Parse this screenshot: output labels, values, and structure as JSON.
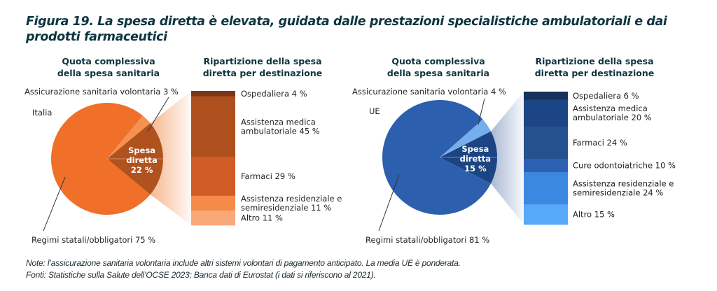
{
  "figure": {
    "title": "Figura 19. La spesa diretta è elevata, guidata dalle prestazioni specialistiche ambulatoriali e dai prodotti farmaceutici",
    "note": "Note: l’assicurazione sanitaria volontaria include altri sistemi volontari di pagamento anticipato. La media UE è ponderata.",
    "sources": "Fonti: Statistiche sulla Salute dell’OCSE 2023; Banca dati di Eurostat (i dati si riferiscono al 2021)."
  },
  "chart_data": [
    {
      "type": "pie",
      "region": "Italia",
      "title_lines": [
        "Quota complessiva",
        "della spesa sanitaria"
      ],
      "slices": [
        {
          "label": "Regimi statali/obbligatori 75 %",
          "value": 75,
          "color": "#f0702a"
        },
        {
          "label": "Assicurazione sanitaria volontaria 3 %",
          "value": 3,
          "color": "#f7914f"
        },
        {
          "label_lines": [
            "Spesa",
            "diretta",
            "22 %"
          ],
          "value": 22,
          "color": "#b0521e",
          "highlight": true
        }
      ]
    },
    {
      "type": "bar",
      "stacked": true,
      "region": "Italia",
      "title_lines": [
        "Ripartizione della spesa",
        "diretta per destinazione"
      ],
      "segments": [
        {
          "label_lines": [
            "Ospedaliera 4 %"
          ],
          "value": 4,
          "color": "#7b3516"
        },
        {
          "label_lines": [
            "Assistenza medica",
            "ambulatoriale 45 %"
          ],
          "value": 45,
          "color": "#ad501e"
        },
        {
          "label_lines": [
            "Farmaci 29 %"
          ],
          "value": 29,
          "color": "#d15b24"
        },
        {
          "label_lines": [
            "Assistenza residenziale e",
            "semiresidenziale 11 %"
          ],
          "value": 11,
          "color": "#f68a48"
        },
        {
          "label_lines": [
            "Altro 11 %"
          ],
          "value": 11,
          "color": "#f9a878"
        }
      ],
      "fan_color": "#f6b48a"
    },
    {
      "type": "pie",
      "region": "UE",
      "title_lines": [
        "Quota complessiva",
        "della spesa sanitaria"
      ],
      "slices": [
        {
          "label": "Regimi statali/obbligatori 81 %",
          "value": 81,
          "color": "#2c5fae"
        },
        {
          "label": "Assicurazione sanitaria volontaria 4 %",
          "value": 4,
          "color": "#75aeed"
        },
        {
          "label_lines": [
            "Spesa",
            "diretta",
            "15 %"
          ],
          "value": 15,
          "color": "#1b4482",
          "highlight": true
        }
      ]
    },
    {
      "type": "bar",
      "stacked": true,
      "region": "UE",
      "title_lines": [
        "Ripartizione della spesa",
        "diretta per destinazione"
      ],
      "segments": [
        {
          "label_lines": [
            "Ospedaliera 6 %"
          ],
          "value": 6,
          "color": "#16325c"
        },
        {
          "label_lines": [
            "Assistenza medica",
            "ambulatoriale 20 %"
          ],
          "value": 20,
          "color": "#1b4584"
        },
        {
          "label_lines": [
            "Farmaci 24 %"
          ],
          "value": 24,
          "color": "#25518f"
        },
        {
          "label_lines": [
            "Cure odontoiatriche 10 %"
          ],
          "value": 10,
          "color": "#2c61b2"
        },
        {
          "label_lines": [
            "Assistenza residenziale e",
            "semiresidenziale 24 %"
          ],
          "value": 24,
          "color": "#3b88e0"
        },
        {
          "label_lines": [
            "Altro 15 %"
          ],
          "value": 15,
          "color": "#56a9f8"
        }
      ],
      "fan_color": "#9fb0cf"
    }
  ]
}
